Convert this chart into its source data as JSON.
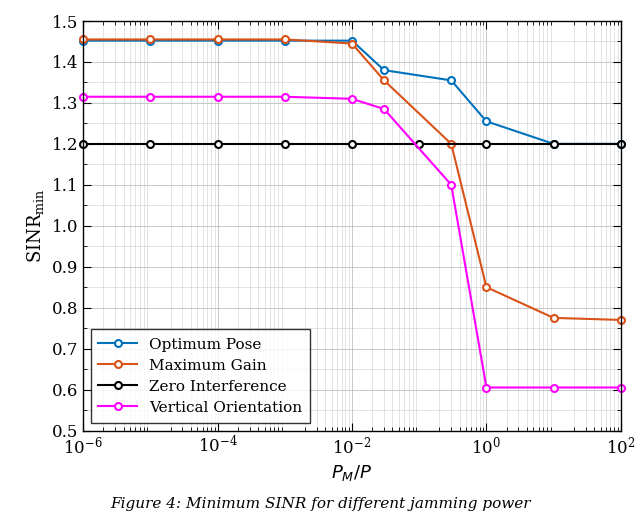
{
  "xlabel": "$P_M/P$",
  "ylabel": "SINR$_\\mathregular{min}$",
  "xlim_log": [
    -6,
    2
  ],
  "ylim": [
    0.5,
    1.5
  ],
  "yticks": [
    0.5,
    0.6,
    0.7,
    0.8,
    0.9,
    1.0,
    1.1,
    1.2,
    1.3,
    1.4,
    1.5
  ],
  "xticks_log": [
    -6,
    -4,
    -2,
    0,
    2
  ],
  "series": [
    {
      "label": "Optimum Pose",
      "color": "#0072BD",
      "x_log": [
        -6,
        -5,
        -4,
        -3,
        -2,
        -1.523,
        -0.523,
        0,
        1,
        2
      ],
      "y": [
        1.452,
        1.452,
        1.452,
        1.452,
        1.452,
        1.38,
        1.355,
        1.255,
        1.2,
        1.2
      ]
    },
    {
      "label": "Maximum Gain",
      "color": "#D95319",
      "x_log": [
        -6,
        -5,
        -4,
        -3,
        -2,
        -1.523,
        -0.523,
        0,
        1,
        2
      ],
      "y": [
        1.455,
        1.455,
        1.455,
        1.455,
        1.445,
        1.355,
        1.2,
        0.85,
        0.775,
        0.77
      ]
    },
    {
      "label": "Zero Interference",
      "color": "#000000",
      "x_log": [
        -6,
        -5,
        -4,
        -3,
        -2,
        -1,
        0,
        1,
        2
      ],
      "y": [
        1.2,
        1.2,
        1.2,
        1.2,
        1.2,
        1.2,
        1.2,
        1.2,
        1.2
      ]
    },
    {
      "label": "Vertical Orientation",
      "color": "#FF00FF",
      "x_log": [
        -6,
        -5,
        -4,
        -3,
        -2,
        -1.523,
        -0.523,
        0,
        1,
        2
      ],
      "y": [
        1.315,
        1.315,
        1.315,
        1.315,
        1.31,
        1.285,
        1.1,
        0.605,
        0.605,
        0.605
      ]
    }
  ],
  "legend_loc": "lower left",
  "figsize": [
    6.4,
    5.25
  ],
  "dpi": 100,
  "caption": "Figure 4: Minimum SINR for different jamming power"
}
